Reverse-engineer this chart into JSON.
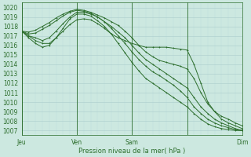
{
  "title": "Pression niveau de la mer( hPa )",
  "xlim": [
    0,
    96
  ],
  "ylim": [
    1006.5,
    1020.5
  ],
  "yticks": [
    1007,
    1008,
    1009,
    1010,
    1011,
    1012,
    1013,
    1014,
    1015,
    1016,
    1017,
    1018,
    1019,
    1020
  ],
  "xtick_positions": [
    0,
    24,
    48,
    72,
    96
  ],
  "xtick_labels": [
    "Jeu",
    "Ven",
    "Sam",
    "",
    "Dim"
  ],
  "bg_color": "#cce8e0",
  "grid_color_major": "#aacccc",
  "grid_color_minor": "#bbdddd",
  "line_color": "#2d6e2d",
  "series": [
    {
      "x": [
        0,
        3,
        6,
        9,
        12,
        15,
        18,
        21,
        24,
        27,
        30,
        33,
        36,
        39,
        42,
        45,
        48,
        51,
        54,
        57,
        60,
        63,
        66,
        69,
        72,
        75,
        78,
        81,
        84,
        87,
        90,
        93,
        96
      ],
      "y": [
        1017.5,
        1017.4,
        1017.6,
        1018.0,
        1018.4,
        1018.9,
        1019.3,
        1019.6,
        1019.8,
        1019.7,
        1019.5,
        1019.2,
        1018.9,
        1018.5,
        1018.1,
        1017.5,
        1016.8,
        1016.0,
        1015.3,
        1014.8,
        1014.4,
        1014.2,
        1014.0,
        1013.8,
        1013.5,
        1012.5,
        1011.0,
        1009.8,
        1009.0,
        1008.5,
        1008.2,
        1007.8,
        1007.5
      ]
    },
    {
      "x": [
        0,
        3,
        6,
        9,
        12,
        15,
        18,
        21,
        24,
        27,
        30,
        33,
        36,
        39,
        42,
        45,
        48,
        51,
        54,
        57,
        60,
        63,
        66,
        69,
        72,
        75,
        78,
        81,
        84,
        87,
        90,
        93,
        96
      ],
      "y": [
        1017.5,
        1017.2,
        1017.3,
        1017.7,
        1018.1,
        1018.6,
        1019.1,
        1019.5,
        1019.7,
        1019.6,
        1019.4,
        1019.0,
        1018.5,
        1018.0,
        1017.4,
        1016.8,
        1016.0,
        1015.2,
        1014.5,
        1014.0,
        1013.5,
        1013.0,
        1012.5,
        1012.0,
        1011.5,
        1010.5,
        1009.5,
        1008.8,
        1008.2,
        1007.8,
        1007.5,
        1007.2,
        1007.0
      ]
    },
    {
      "x": [
        0,
        3,
        6,
        9,
        12,
        15,
        18,
        21,
        24,
        27,
        30,
        33,
        36,
        39,
        42,
        45,
        48,
        51,
        54,
        57,
        60,
        63,
        66,
        69,
        72,
        75,
        78,
        81,
        84,
        87,
        90,
        93,
        96
      ],
      "y": [
        1017.5,
        1017.0,
        1016.8,
        1016.5,
        1016.8,
        1017.5,
        1018.3,
        1019.0,
        1019.5,
        1019.5,
        1019.3,
        1019.0,
        1018.5,
        1017.8,
        1017.0,
        1016.2,
        1015.3,
        1014.5,
        1013.8,
        1013.2,
        1012.8,
        1012.3,
        1011.8,
        1011.2,
        1010.5,
        1009.5,
        1008.8,
        1008.2,
        1007.8,
        1007.5,
        1007.3,
        1007.1,
        1007.0
      ]
    },
    {
      "x": [
        0,
        3,
        6,
        9,
        12,
        15,
        18,
        21,
        24,
        27,
        30,
        33,
        36,
        39,
        42,
        45,
        48,
        51,
        54,
        57,
        60,
        63,
        66,
        69,
        72,
        75,
        78,
        81,
        84,
        87,
        90,
        93,
        96
      ],
      "y": [
        1017.5,
        1016.8,
        1016.2,
        1015.8,
        1016.0,
        1016.8,
        1017.8,
        1018.8,
        1019.3,
        1019.3,
        1019.1,
        1018.6,
        1018.0,
        1017.2,
        1016.2,
        1015.2,
        1014.2,
        1013.3,
        1012.5,
        1012.0,
        1011.5,
        1011.0,
        1010.5,
        1010.0,
        1009.5,
        1008.8,
        1008.2,
        1007.7,
        1007.4,
        1007.2,
        1007.1,
        1007.0,
        1007.0
      ]
    },
    {
      "x": [
        0,
        3,
        6,
        9,
        12,
        15,
        18,
        21,
        24,
        27,
        30,
        33,
        36,
        39,
        42,
        45,
        48,
        51,
        54,
        57,
        60,
        63,
        66,
        69,
        72,
        75,
        78,
        81,
        84,
        87,
        90,
        93,
        96
      ],
      "y": [
        1017.5,
        1017.0,
        1016.5,
        1016.2,
        1016.2,
        1016.8,
        1017.5,
        1018.2,
        1018.7,
        1018.8,
        1018.7,
        1018.3,
        1017.8,
        1017.2,
        1016.8,
        1016.5,
        1016.2,
        1016.0,
        1015.8,
        1015.8,
        1015.8,
        1015.8,
        1015.7,
        1015.6,
        1015.5,
        1014.0,
        1012.0,
        1010.0,
        1009.0,
        1008.2,
        1007.8,
        1007.5,
        1007.2
      ]
    }
  ]
}
